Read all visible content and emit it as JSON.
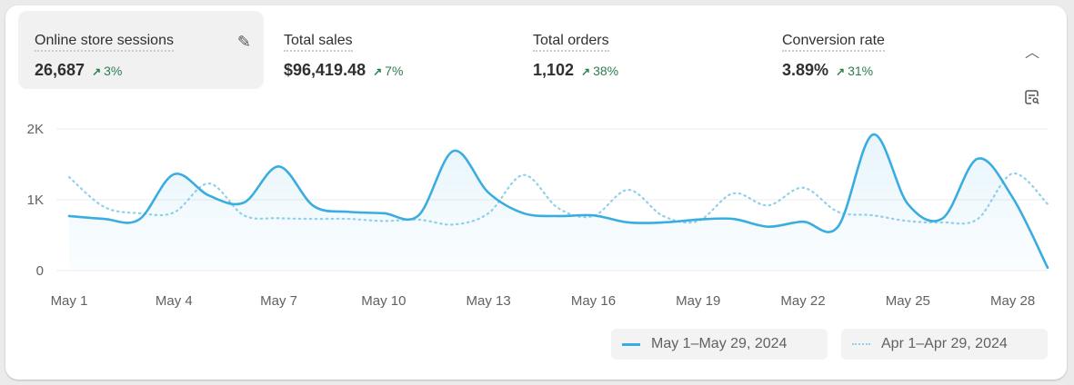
{
  "metrics": [
    {
      "label": "Online store sessions",
      "value": "26,687",
      "change": "3%",
      "active": true
    },
    {
      "label": "Total sales",
      "value": "$96,419.48",
      "change": "7%"
    },
    {
      "label": "Total orders",
      "value": "1,102",
      "change": "38%"
    },
    {
      "label": "Conversion rate",
      "value": "3.89%",
      "change": "31%"
    }
  ],
  "icons": {
    "edit": "pencil-icon",
    "collapse": "chevron-up-icon",
    "explore": "explore-data-icon",
    "trend": "arrow-up-right-icon"
  },
  "colors": {
    "current": "#3aade0",
    "previous": "#8fd0ea",
    "positive": "#2e7d4f"
  },
  "chart_data": {
    "type": "line",
    "ylim": [
      0,
      2000
    ],
    "yticks": [
      {
        "v": 0,
        "label": "0"
      },
      {
        "v": 1000,
        "label": "1K"
      },
      {
        "v": 2000,
        "label": "2K"
      }
    ],
    "xtick_labels": [
      "May 1",
      "May 4",
      "May 7",
      "May 10",
      "May 13",
      "May 16",
      "May 19",
      "May 22",
      "May 25",
      "May 28"
    ],
    "x": [
      1,
      2,
      3,
      4,
      5,
      6,
      7,
      8,
      9,
      10,
      11,
      12,
      13,
      14,
      15,
      16,
      17,
      18,
      19,
      20,
      21,
      22,
      23,
      24,
      25,
      26,
      27,
      28,
      29
    ],
    "series": [
      {
        "name": "May 1–May 29, 2024",
        "style": "solid",
        "values": [
          770,
          730,
          720,
          1360,
          1060,
          960,
          1470,
          910,
          830,
          810,
          780,
          1690,
          1100,
          810,
          770,
          780,
          680,
          680,
          720,
          730,
          620,
          690,
          620,
          1920,
          940,
          740,
          1580,
          1030,
          40
        ]
      },
      {
        "name": "Apr 1–Apr 29, 2024",
        "style": "dotted",
        "values": [
          1320,
          900,
          810,
          820,
          1230,
          780,
          740,
          730,
          730,
          700,
          720,
          650,
          810,
          1350,
          880,
          770,
          1140,
          770,
          700,
          1090,
          920,
          1170,
          830,
          780,
          700,
          680,
          730,
          1370,
          940
        ]
      }
    ]
  }
}
